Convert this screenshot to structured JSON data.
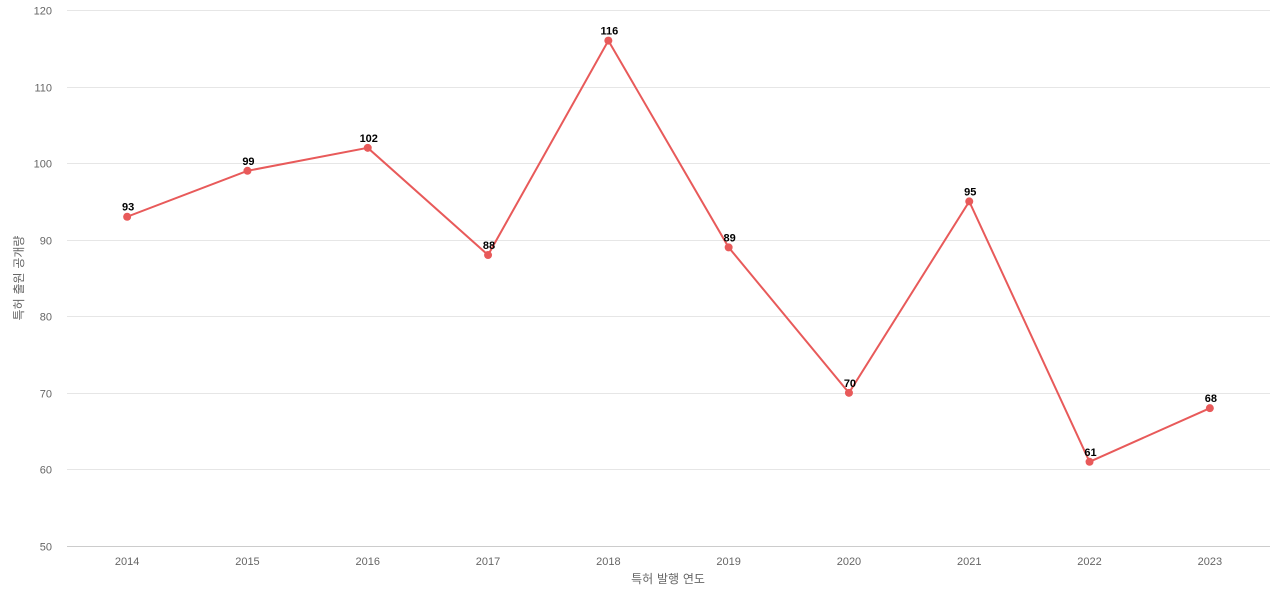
{
  "chart_data": {
    "type": "line",
    "title": "",
    "xlabel": "특허 발행 연도",
    "ylabel": "특허 출원 공개량",
    "categories": [
      "2014",
      "2015",
      "2016",
      "2017",
      "2018",
      "2019",
      "2020",
      "2021",
      "2022",
      "2023"
    ],
    "series": [
      {
        "values": [
          93,
          99,
          102,
          88,
          116,
          89,
          70,
          95,
          61,
          68
        ],
        "color": "#e85a5a"
      }
    ],
    "ylim": [
      50,
      120
    ],
    "yticks": [
      50,
      60,
      70,
      80,
      90,
      100,
      110,
      120
    ],
    "grid": true,
    "legend": "none",
    "data_labels": true
  }
}
